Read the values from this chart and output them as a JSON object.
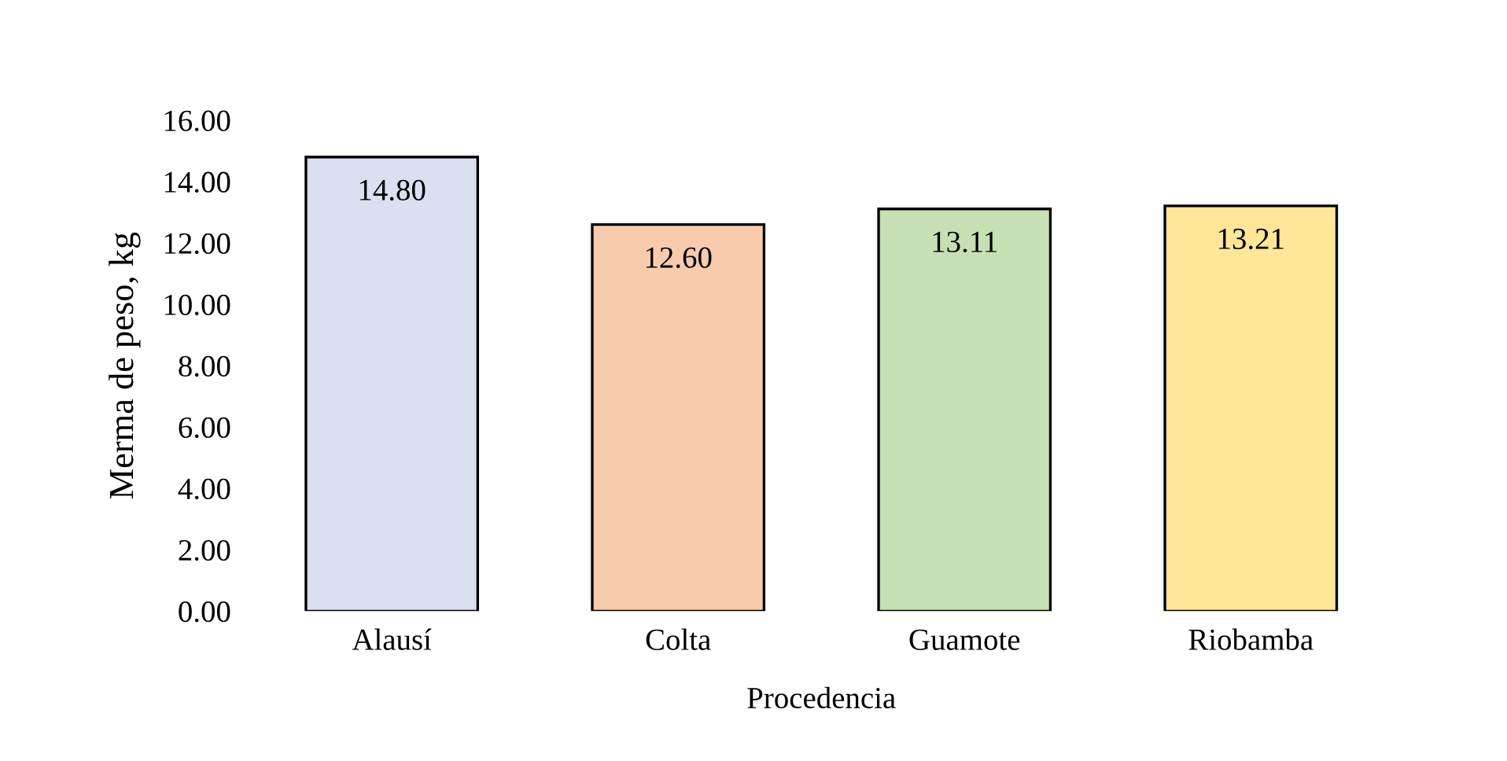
{
  "chart_data": {
    "type": "bar",
    "xlabel": "Procedencia",
    "ylabel": "Merma de peso, kg",
    "categories": [
      "Alausí",
      "Colta",
      "Guamote",
      "Riobamba"
    ],
    "values": [
      14.8,
      12.6,
      13.11,
      13.21
    ],
    "value_labels": [
      "14.80",
      "12.60",
      "13.11",
      "13.21"
    ],
    "colors": [
      "#dae0f0",
      "#f8cbad",
      "#c6e0b4",
      "#ffe699"
    ],
    "ylim": [
      0,
      16
    ],
    "yticks": [
      {
        "value": 0,
        "label": "0.00"
      },
      {
        "value": 2,
        "label": "2.00"
      },
      {
        "value": 4,
        "label": "4.00"
      },
      {
        "value": 6,
        "label": "6.00"
      },
      {
        "value": 8,
        "label": "8.00"
      },
      {
        "value": 10,
        "label": "10.00"
      },
      {
        "value": 12,
        "label": "12.00"
      },
      {
        "value": 14,
        "label": "14.00"
      },
      {
        "value": 16,
        "label": "16.00"
      }
    ],
    "grid": false,
    "legend": false
  }
}
